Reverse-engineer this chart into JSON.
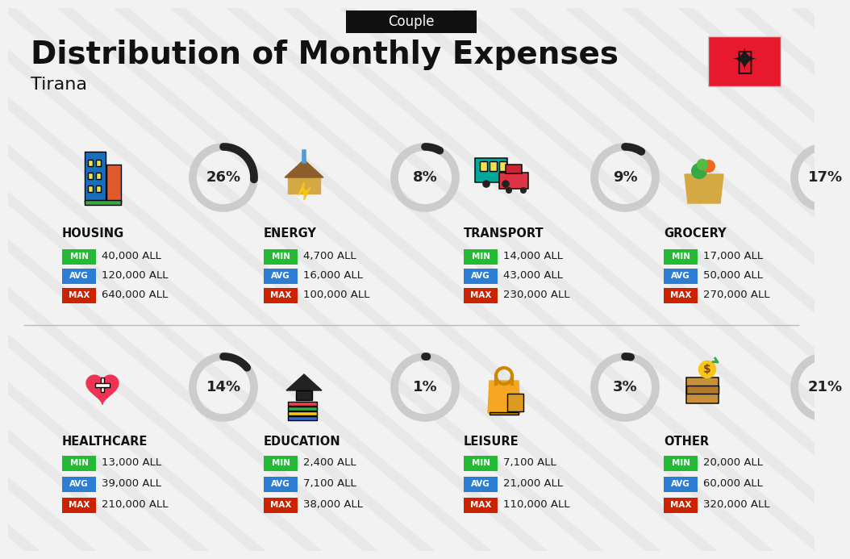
{
  "title": "Distribution of Monthly Expenses",
  "subtitle": "Couple",
  "city": "Tirana",
  "background_color": "#f2f2f2",
  "categories": [
    {
      "name": "HOUSING",
      "percent": 26,
      "min": "40,000 ALL",
      "avg": "120,000 ALL",
      "max": "640,000 ALL",
      "row": 0,
      "col": 0
    },
    {
      "name": "ENERGY",
      "percent": 8,
      "min": "4,700 ALL",
      "avg": "16,000 ALL",
      "max": "100,000 ALL",
      "row": 0,
      "col": 1
    },
    {
      "name": "TRANSPORT",
      "percent": 9,
      "min": "14,000 ALL",
      "avg": "43,000 ALL",
      "max": "230,000 ALL",
      "row": 0,
      "col": 2
    },
    {
      "name": "GROCERY",
      "percent": 17,
      "min": "17,000 ALL",
      "avg": "50,000 ALL",
      "max": "270,000 ALL",
      "row": 0,
      "col": 3
    },
    {
      "name": "HEALTHCARE",
      "percent": 14,
      "min": "13,000 ALL",
      "avg": "39,000 ALL",
      "max": "210,000 ALL",
      "row": 1,
      "col": 0
    },
    {
      "name": "EDUCATION",
      "percent": 1,
      "min": "2,400 ALL",
      "avg": "7,100 ALL",
      "max": "38,000 ALL",
      "row": 1,
      "col": 1
    },
    {
      "name": "LEISURE",
      "percent": 3,
      "min": "7,100 ALL",
      "avg": "21,000 ALL",
      "max": "110,000 ALL",
      "row": 1,
      "col": 2
    },
    {
      "name": "OTHER",
      "percent": 21,
      "min": "20,000 ALL",
      "avg": "60,000 ALL",
      "max": "320,000 ALL",
      "row": 1,
      "col": 3
    }
  ],
  "min_color": "#22bb33",
  "avg_color": "#2d7dd2",
  "max_color": "#cc2200",
  "value_text_color": "#1a1a1a",
  "title_color": "#111111",
  "donut_dark": "#222222",
  "donut_light": "#cccccc",
  "subtitle_bg": "#111111",
  "subtitle_text": "#ffffff",
  "flag_color": "#e8192c",
  "stripe_color": "#cccccc",
  "divider_color": "#bbbbbb"
}
